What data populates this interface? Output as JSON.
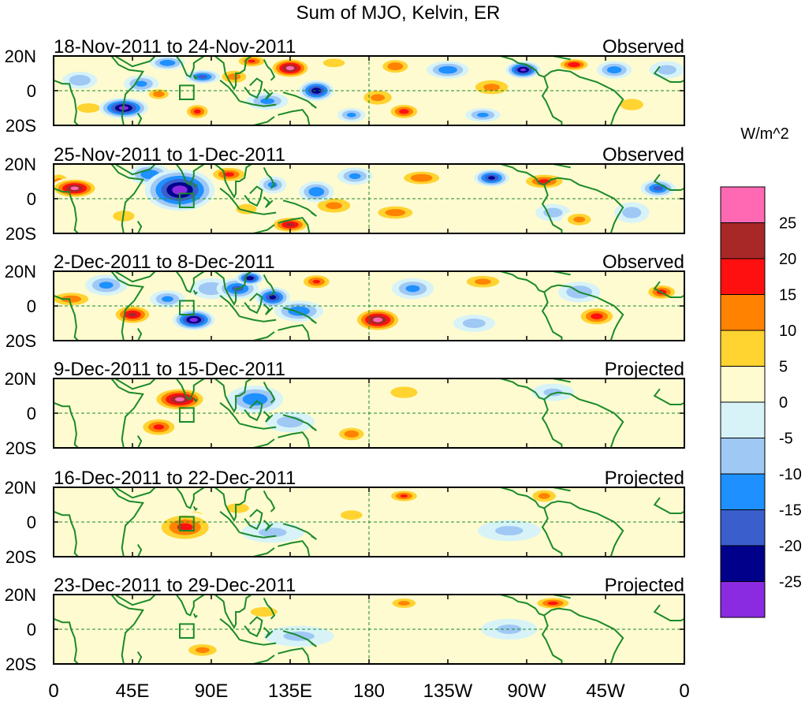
{
  "chart_data": {
    "type": "heatmap",
    "title": "Sum of MJO, Kelvin, ER",
    "colorbar": {
      "units": "W/m^2",
      "levels": [
        -25,
        -20,
        -15,
        -10,
        -5,
        0,
        5,
        10,
        15,
        20,
        25
      ],
      "tick_labels": [
        "25",
        "20",
        "15",
        "10",
        "5",
        "0",
        "-5",
        "-10",
        "-15",
        "-20",
        "-25"
      ],
      "colors_low_to_high": [
        "#8a2be2",
        "#00008b",
        "#3a5fcd",
        "#1e90ff",
        "#9fc8f5",
        "#d7f3f7",
        "#fffbd0",
        "#ffd330",
        "#ff8200",
        "#ff1010",
        "#a82828",
        "#ff69b4"
      ]
    },
    "x_ticks": [
      "0",
      "45E",
      "90E",
      "135E",
      "180",
      "135W",
      "90W",
      "45W",
      "0"
    ],
    "x_tick_lons": [
      0,
      45,
      90,
      135,
      180,
      225,
      270,
      315,
      360
    ],
    "y_ticks": [
      "20N",
      "0",
      "20S"
    ],
    "y_tick_lats": [
      20,
      0,
      -20
    ],
    "reference_lines": {
      "equator_lat": 0,
      "dateline_lon": 180
    },
    "box_marker": {
      "lon_range": [
        72,
        80
      ],
      "lat_range": [
        -5,
        3
      ]
    },
    "panels": [
      {
        "period": "18-Nov-2011 to 24-Nov-2011",
        "status": "Observed",
        "features": [
          {
            "lon": 40,
            "lat": -10,
            "val": -28,
            "rl": 14,
            "rt": 6
          },
          {
            "lon": 50,
            "lat": 4,
            "val": -12,
            "rl": 10,
            "rt": 5
          },
          {
            "lon": 65,
            "lat": 16,
            "val": -15,
            "rl": 10,
            "rt": 4
          },
          {
            "lon": 60,
            "lat": -2,
            "val": 14,
            "rl": 8,
            "rt": 4
          },
          {
            "lon": 82,
            "lat": -12,
            "val": 17,
            "rl": 8,
            "rt": 5
          },
          {
            "lon": 85,
            "lat": 8,
            "val": -18,
            "rl": 10,
            "rt": 4
          },
          {
            "lon": 103,
            "lat": 8,
            "val": 13,
            "rl": 10,
            "rt": 5
          },
          {
            "lon": 113,
            "lat": 17,
            "val": 16,
            "rl": 10,
            "rt": 4
          },
          {
            "lon": 122,
            "lat": -6,
            "val": -12,
            "rl": 12,
            "rt": 5
          },
          {
            "lon": 135,
            "lat": 13,
            "val": 28,
            "rl": 12,
            "rt": 6
          },
          {
            "lon": 150,
            "lat": 0,
            "val": -25,
            "rl": 10,
            "rt": 6
          },
          {
            "lon": 160,
            "lat": 16,
            "val": 10,
            "rl": 10,
            "rt": 4
          },
          {
            "lon": 185,
            "lat": -4,
            "val": 12,
            "rl": 12,
            "rt": 6
          },
          {
            "lon": 170,
            "lat": -14,
            "val": -12,
            "rl": 8,
            "rt": 4
          },
          {
            "lon": 195,
            "lat": 14,
            "val": 15,
            "rl": 10,
            "rt": 5
          },
          {
            "lon": 200,
            "lat": -12,
            "val": 18,
            "rl": 10,
            "rt": 5
          },
          {
            "lon": 225,
            "lat": 12,
            "val": -15,
            "rl": 12,
            "rt": 5
          },
          {
            "lon": 250,
            "lat": 2,
            "val": 12,
            "rl": 14,
            "rt": 6
          },
          {
            "lon": 245,
            "lat": -14,
            "val": -12,
            "rl": 10,
            "rt": 4
          },
          {
            "lon": 268,
            "lat": 12,
            "val": -27,
            "rl": 10,
            "rt": 5
          },
          {
            "lon": 297,
            "lat": 15,
            "val": 20,
            "rl": 10,
            "rt": 4
          },
          {
            "lon": 320,
            "lat": 12,
            "val": -14,
            "rl": 10,
            "rt": 5
          },
          {
            "lon": 330,
            "lat": -8,
            "val": 8,
            "rl": 12,
            "rt": 6
          },
          {
            "lon": 15,
            "lat": 6,
            "val": -10,
            "rl": 10,
            "rt": 5
          },
          {
            "lon": 20,
            "lat": -10,
            "val": 8,
            "rl": 12,
            "rt": 5
          },
          {
            "lon": 350,
            "lat": 12,
            "val": -8,
            "rl": 10,
            "rt": 5
          }
        ]
      },
      {
        "period": "25-Nov-2011 to 1-Dec-2011",
        "status": "Observed",
        "features": [
          {
            "lon": 12,
            "lat": 6,
            "val": 27,
            "rl": 14,
            "rt": 6
          },
          {
            "lon": 3,
            "lat": 8,
            "val": 16,
            "rl": 8,
            "rt": 8
          },
          {
            "lon": 72,
            "lat": 5,
            "val": -29,
            "rl": 20,
            "rt": 12
          },
          {
            "lon": 55,
            "lat": 14,
            "val": -15,
            "rl": 12,
            "rt": 6
          },
          {
            "lon": 100,
            "lat": 14,
            "val": 17,
            "rl": 12,
            "rt": 5
          },
          {
            "lon": 110,
            "lat": -6,
            "val": 9,
            "rl": 10,
            "rt": 5
          },
          {
            "lon": 125,
            "lat": 8,
            "val": -12,
            "rl": 8,
            "rt": 5
          },
          {
            "lon": 135,
            "lat": -15,
            "val": 22,
            "rl": 12,
            "rt": 5
          },
          {
            "lon": 150,
            "lat": 4,
            "val": -15,
            "rl": 10,
            "rt": 6
          },
          {
            "lon": 160,
            "lat": -4,
            "val": 12,
            "rl": 14,
            "rt": 6
          },
          {
            "lon": 172,
            "lat": 13,
            "val": -12,
            "rl": 10,
            "rt": 5
          },
          {
            "lon": 195,
            "lat": -8,
            "val": 14,
            "rl": 14,
            "rt": 5
          },
          {
            "lon": 210,
            "lat": 12,
            "val": 15,
            "rl": 14,
            "rt": 5
          },
          {
            "lon": 250,
            "lat": 12,
            "val": -22,
            "rl": 10,
            "rt": 5
          },
          {
            "lon": 280,
            "lat": 10,
            "val": 17,
            "rl": 14,
            "rt": 5
          },
          {
            "lon": 285,
            "lat": -8,
            "val": -8,
            "rl": 10,
            "rt": 5
          },
          {
            "lon": 300,
            "lat": -12,
            "val": 12,
            "rl": 10,
            "rt": 5
          },
          {
            "lon": 345,
            "lat": 6,
            "val": -18,
            "rl": 10,
            "rt": 5
          },
          {
            "lon": 330,
            "lat": -8,
            "val": -8,
            "rl": 10,
            "rt": 6
          },
          {
            "lon": 40,
            "lat": -10,
            "val": 10,
            "rl": 10,
            "rt": 5
          }
        ]
      },
      {
        "period": "2-Dec-2011 to 8-Dec-2011",
        "status": "Observed",
        "features": [
          {
            "lon": 10,
            "lat": 4,
            "val": 14,
            "rl": 14,
            "rt": 5
          },
          {
            "lon": 30,
            "lat": 12,
            "val": -12,
            "rl": 12,
            "rt": 6
          },
          {
            "lon": 45,
            "lat": -5,
            "val": 22,
            "rl": 12,
            "rt": 6
          },
          {
            "lon": 65,
            "lat": 4,
            "val": -12,
            "rl": 10,
            "rt": 5
          },
          {
            "lon": 80,
            "lat": -8,
            "val": -28,
            "rl": 12,
            "rt": 6
          },
          {
            "lon": 105,
            "lat": 10,
            "val": -18,
            "rl": 12,
            "rt": 6
          },
          {
            "lon": 112,
            "lat": 16,
            "val": -25,
            "rl": 8,
            "rt": 4
          },
          {
            "lon": 125,
            "lat": 5,
            "val": -22,
            "rl": 10,
            "rt": 6
          },
          {
            "lon": 140,
            "lat": -3,
            "val": -15,
            "rl": 14,
            "rt": 6
          },
          {
            "lon": 150,
            "lat": 14,
            "val": 16,
            "rl": 10,
            "rt": 5
          },
          {
            "lon": 185,
            "lat": -8,
            "val": 28,
            "rl": 14,
            "rt": 7
          },
          {
            "lon": 205,
            "lat": 10,
            "val": -12,
            "rl": 12,
            "rt": 6
          },
          {
            "lon": 245,
            "lat": 14,
            "val": 12,
            "rl": 14,
            "rt": 5
          },
          {
            "lon": 240,
            "lat": -10,
            "val": -8,
            "rl": 12,
            "rt": 5
          },
          {
            "lon": 300,
            "lat": 8,
            "val": -10,
            "rl": 12,
            "rt": 6
          },
          {
            "lon": 310,
            "lat": -6,
            "val": 18,
            "rl": 12,
            "rt": 6
          },
          {
            "lon": 347,
            "lat": 8,
            "val": 18,
            "rl": 10,
            "rt": 5
          },
          {
            "lon": 90,
            "lat": 10,
            "val": -10,
            "rl": 12,
            "rt": 6
          }
        ]
      },
      {
        "period": "9-Dec-2011 to 15-Dec-2011",
        "status": "Projected",
        "features": [
          {
            "lon": 72,
            "lat": 8,
            "val": 27,
            "rl": 16,
            "rt": 7
          },
          {
            "lon": 60,
            "lat": -8,
            "val": 17,
            "rl": 12,
            "rt": 6
          },
          {
            "lon": 115,
            "lat": 8,
            "val": -15,
            "rl": 16,
            "rt": 8
          },
          {
            "lon": 135,
            "lat": -5,
            "val": -8,
            "rl": 14,
            "rt": 6
          },
          {
            "lon": 170,
            "lat": -12,
            "val": 14,
            "rl": 10,
            "rt": 5
          },
          {
            "lon": 200,
            "lat": 12,
            "val": 8,
            "rl": 14,
            "rt": 6
          },
          {
            "lon": 250,
            "lat": 6,
            "val": 5,
            "rl": 16,
            "rt": 6
          },
          {
            "lon": 20,
            "lat": 10,
            "val": 5,
            "rl": 14,
            "rt": 6
          },
          {
            "lon": 320,
            "lat": 0,
            "val": 3,
            "rl": 20,
            "rt": 8
          },
          {
            "lon": 285,
            "lat": 12,
            "val": -6,
            "rl": 12,
            "rt": 5
          }
        ]
      },
      {
        "period": "16-Dec-2011 to 22-Dec-2011",
        "status": "Projected",
        "features": [
          {
            "lon": 75,
            "lat": -3,
            "val": 17,
            "rl": 18,
            "rt": 9
          },
          {
            "lon": 80,
            "lat": 2,
            "val": 12,
            "rl": 10,
            "rt": 6
          },
          {
            "lon": 105,
            "lat": 8,
            "val": 8,
            "rl": 12,
            "rt": 5
          },
          {
            "lon": 125,
            "lat": -6,
            "val": -6,
            "rl": 18,
            "rt": 6
          },
          {
            "lon": 200,
            "lat": 15,
            "val": 16,
            "rl": 10,
            "rt": 4
          },
          {
            "lon": 280,
            "lat": 15,
            "val": 12,
            "rl": 10,
            "rt": 5
          },
          {
            "lon": 260,
            "lat": -5,
            "val": -6,
            "rl": 18,
            "rt": 6
          },
          {
            "lon": 170,
            "lat": 4,
            "val": 6,
            "rl": 14,
            "rt": 6
          }
        ]
      },
      {
        "period": "23-Dec-2011 to 29-Dec-2011",
        "status": "Projected",
        "features": [
          {
            "lon": 85,
            "lat": -12,
            "val": 12,
            "rl": 12,
            "rt": 5
          },
          {
            "lon": 120,
            "lat": 10,
            "val": 8,
            "rl": 14,
            "rt": 5
          },
          {
            "lon": 200,
            "lat": 15,
            "val": 12,
            "rl": 10,
            "rt": 4
          },
          {
            "lon": 285,
            "lat": 15,
            "val": 17,
            "rl": 12,
            "rt": 4
          },
          {
            "lon": 140,
            "lat": -4,
            "val": -6,
            "rl": 20,
            "rt": 6
          },
          {
            "lon": 260,
            "lat": 0,
            "val": -6,
            "rl": 16,
            "rt": 6
          },
          {
            "lon": 40,
            "lat": 8,
            "val": 5,
            "rl": 14,
            "rt": 6
          }
        ]
      }
    ]
  }
}
